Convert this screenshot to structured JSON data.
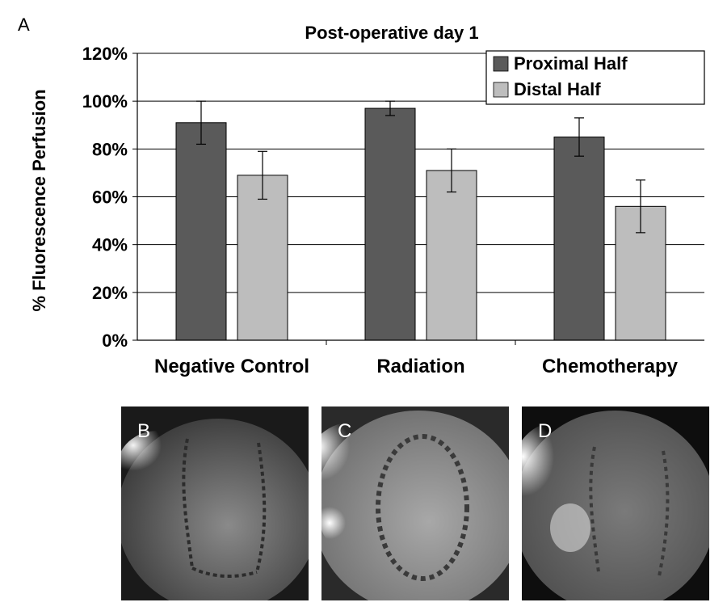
{
  "figure": {
    "panel_labels": [
      "A",
      "B",
      "C",
      "D"
    ]
  },
  "chart_data": {
    "type": "bar",
    "title": "Post-operative day 1",
    "xlabel": "",
    "ylabel": "% Fluorescence Perfusion",
    "ylim": [
      0,
      120
    ],
    "yticks": [
      "0%",
      "20%",
      "40%",
      "60%",
      "80%",
      "100%",
      "120%"
    ],
    "grid": "horizontal",
    "legend_position": "top-right",
    "categories": [
      "Negative Control",
      "Radiation",
      "Chemotherapy"
    ],
    "series": [
      {
        "name": "Proximal Half",
        "color": "#5a5a5a",
        "values": [
          91,
          97,
          85
        ],
        "errors": [
          9,
          3,
          8
        ]
      },
      {
        "name": "Distal Half",
        "color": "#bdbdbd",
        "values": [
          69,
          71,
          56
        ],
        "errors": [
          10,
          9,
          11
        ]
      }
    ]
  },
  "images": [
    {
      "label": "B",
      "description_icon": "fluorescence-image-negative-control"
    },
    {
      "label": "C",
      "description_icon": "fluorescence-image-radiation"
    },
    {
      "label": "D",
      "description_icon": "fluorescence-image-chemotherapy"
    }
  ]
}
